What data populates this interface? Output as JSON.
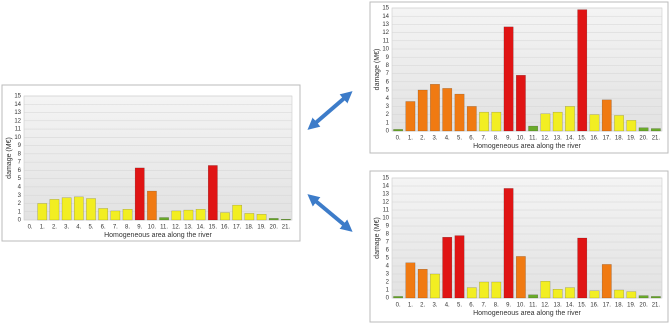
{
  "chart_data": [
    {
      "type": "bar",
      "ylabel": "damage (M€)",
      "xlabel": "Homogeneous area along the river",
      "categories": [
        "0.",
        "1.",
        "2.",
        "3.",
        "4.",
        "5.",
        "6.",
        "7.",
        "8.",
        "9.",
        "10.",
        "11.",
        "12.",
        "13.",
        "14.",
        "15.",
        "16.",
        "17.",
        "18.",
        "19.",
        "20.",
        "21."
      ],
      "values": [
        0,
        2,
        2.5,
        2.7,
        2.8,
        2.6,
        1.4,
        1.1,
        1.3,
        6.3,
        3.5,
        0.3,
        1.1,
        1.2,
        1.3,
        6.6,
        0.9,
        1.8,
        0.8,
        0.7,
        0.2,
        0.1
      ],
      "colors": [
        "#6aaa2a",
        "#f2ee22",
        "#f2ee22",
        "#f2ee22",
        "#f2ee22",
        "#f2ee22",
        "#f2ee22",
        "#f2ee22",
        "#f2ee22",
        "#e01414",
        "#f07a12",
        "#6aaa2a",
        "#f2ee22",
        "#f2ee22",
        "#f2ee22",
        "#e01414",
        "#f2ee22",
        "#f2ee22",
        "#f2ee22",
        "#f2ee22",
        "#6aaa2a",
        "#6aaa2a"
      ],
      "ylim": [
        0,
        15
      ],
      "yticks": [
        0,
        1,
        2,
        3,
        4,
        5,
        6,
        7,
        8,
        9,
        10,
        11,
        12,
        13,
        14,
        15
      ],
      "grid": true
    },
    {
      "type": "bar",
      "ylabel": "damage (M€)",
      "xlabel": "Homogeneous area along the river",
      "categories": [
        "0.",
        "1.",
        "2.",
        "3.",
        "4.",
        "5.",
        "6.",
        "7.",
        "8.",
        "9.",
        "10.",
        "11.",
        "12.",
        "13.",
        "14.",
        "15.",
        "16.",
        "17.",
        "18.",
        "19.",
        "20.",
        "21."
      ],
      "values": [
        0.2,
        3.6,
        5,
        5.7,
        5.2,
        4.5,
        3,
        2.3,
        2.3,
        12.7,
        6.8,
        0.6,
        2.1,
        2.3,
        3,
        14.8,
        2,
        3.8,
        1.9,
        1.3,
        0.4,
        0.3
      ],
      "colors": [
        "#6aaa2a",
        "#f07a12",
        "#f07a12",
        "#f07a12",
        "#f07a12",
        "#f07a12",
        "#f07a12",
        "#f2ee22",
        "#f2ee22",
        "#e01414",
        "#e01414",
        "#6aaa2a",
        "#f2ee22",
        "#f2ee22",
        "#f2ee22",
        "#e01414",
        "#f2ee22",
        "#f07a12",
        "#f2ee22",
        "#f2ee22",
        "#6aaa2a",
        "#6aaa2a"
      ],
      "ylim": [
        0,
        15
      ],
      "yticks": [
        0,
        1,
        2,
        3,
        4,
        5,
        6,
        7,
        8,
        9,
        10,
        11,
        12,
        13,
        14,
        15
      ],
      "grid": true
    },
    {
      "type": "bar",
      "ylabel": "damage (M€)",
      "xlabel": "Homogeneous area along the river",
      "categories": [
        "0.",
        "1.",
        "2.",
        "3.",
        "4.",
        "5.",
        "6.",
        "7.",
        "8.",
        "9.",
        "10.",
        "11.",
        "12.",
        "13.",
        "14.",
        "15.",
        "16.",
        "17.",
        "18.",
        "19.",
        "20.",
        "21."
      ],
      "values": [
        0.2,
        4.4,
        3.6,
        3,
        7.6,
        7.8,
        1.3,
        2,
        2,
        13.7,
        5.2,
        0.4,
        2.1,
        1.1,
        1.3,
        7.5,
        0.9,
        4.2,
        1,
        0.8,
        0.3,
        0.2
      ],
      "colors": [
        "#6aaa2a",
        "#f07a12",
        "#f07a12",
        "#f2ee22",
        "#e01414",
        "#e01414",
        "#f2ee22",
        "#f2ee22",
        "#f2ee22",
        "#e01414",
        "#f07a12",
        "#6aaa2a",
        "#f2ee22",
        "#f2ee22",
        "#f2ee22",
        "#e01414",
        "#f2ee22",
        "#f07a12",
        "#f2ee22",
        "#f2ee22",
        "#6aaa2a",
        "#6aaa2a"
      ],
      "ylim": [
        0,
        15
      ],
      "yticks": [
        0,
        1,
        2,
        3,
        4,
        5,
        6,
        7,
        8,
        9,
        10,
        11,
        12,
        13,
        14,
        15
      ],
      "grid": true
    }
  ]
}
